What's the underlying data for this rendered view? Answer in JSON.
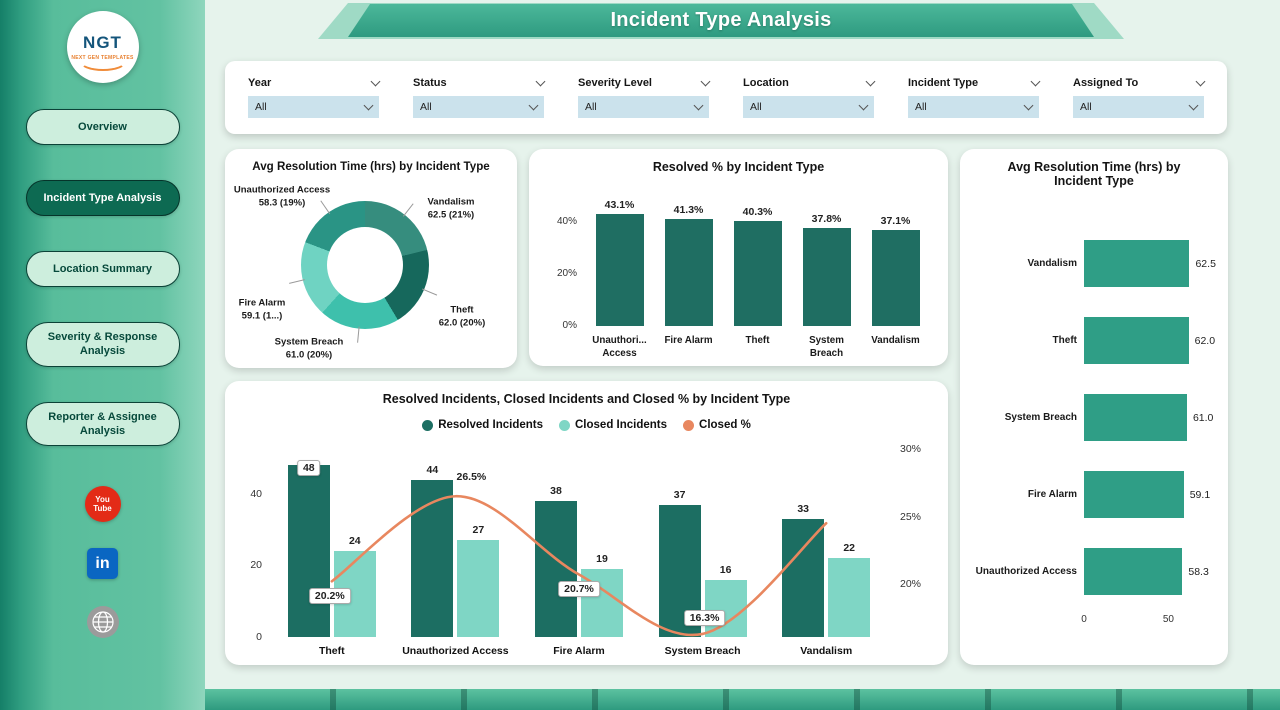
{
  "page_title": "Incident Type Analysis",
  "sidebar": {
    "logo_text": "NGT",
    "logo_subtext": "NEXT GEN TEMPLATES",
    "items": [
      {
        "label": "Overview",
        "active": false
      },
      {
        "label": "Incident Type Analysis",
        "active": true
      },
      {
        "label": "Location Summary",
        "active": false
      },
      {
        "label": "Severity & Response Analysis",
        "active": false
      },
      {
        "label": "Reporter & Assignee Analysis",
        "active": false
      }
    ],
    "social": [
      {
        "name": "youtube",
        "lines": [
          "You",
          "Tube"
        ]
      },
      {
        "name": "linkedin",
        "text": "in"
      },
      {
        "name": "website"
      }
    ]
  },
  "filters": [
    {
      "label": "Year",
      "value": "All"
    },
    {
      "label": "Status",
      "value": "All"
    },
    {
      "label": "Severity Level",
      "value": "All"
    },
    {
      "label": "Location",
      "value": "All"
    },
    {
      "label": "Incident Type",
      "value": "All"
    },
    {
      "label": "Assigned To",
      "value": "All"
    }
  ],
  "chart_data": [
    {
      "id": "avg-resolution-donut",
      "type": "pie",
      "donut": true,
      "title": "Avg Resolution Time (hrs) by Incident Type",
      "slices": [
        {
          "label": "Vandalism",
          "value": 62.5,
          "pct": 21,
          "label_lines": [
            "Vandalism",
            "62.5 (21%)"
          ],
          "color": "#368d7e"
        },
        {
          "label": "Theft",
          "value": 62.0,
          "pct": 20,
          "label_lines": [
            "Theft",
            "62.0 (20%)"
          ],
          "color": "#16685c"
        },
        {
          "label": "System Breach",
          "value": 61.0,
          "pct": 20,
          "label_lines": [
            "System Breach",
            "61.0 (20%)"
          ],
          "color": "#3ec0ac"
        },
        {
          "label": "Fire Alarm",
          "value": 59.1,
          "pct": 19,
          "label_lines": [
            "Fire Alarm",
            "59.1 (1...)"
          ],
          "color": "#6fd3c2"
        },
        {
          "label": "Unauthorized Access",
          "value": 58.3,
          "pct": 19,
          "label_lines": [
            "Unauthorized Access",
            "58.3 (19%)"
          ],
          "color": "#2a9485"
        }
      ]
    },
    {
      "id": "resolved-pct-by-incident-type",
      "type": "bar",
      "title": "Resolved % by Incident Type",
      "categories": [
        [
          "Unauthori...",
          "Access"
        ],
        [
          "Fire Alarm"
        ],
        [
          "Theft"
        ],
        [
          "System",
          "Breach"
        ],
        [
          "Vandalism"
        ]
      ],
      "values": [
        43.1,
        41.3,
        40.3,
        37.8,
        37.1
      ],
      "value_labels": [
        "43.1%",
        "41.3%",
        "40.3%",
        "37.8%",
        "37.1%"
      ],
      "y_ticks": [
        {
          "v": 40,
          "label": "40%"
        },
        {
          "v": 20,
          "label": "20%"
        },
        {
          "v": 0,
          "label": "0%"
        }
      ],
      "ylim": [
        0,
        47
      ],
      "bar_color": "#1f6e62"
    },
    {
      "id": "avg-resolution-hbar",
      "type": "bar",
      "orientation": "horizontal",
      "title": "Avg Resolution Time (hrs) by Incident Type",
      "categories": [
        "Vandalism",
        "Theft",
        "System Breach",
        "Fire Alarm",
        "Unauthorized Access"
      ],
      "values": [
        62.5,
        62.0,
        61.0,
        59.1,
        58.3
      ],
      "value_labels": [
        "62.5",
        "62.0",
        "61.0",
        "59.1",
        "58.3"
      ],
      "x_ticks": [
        {
          "v": 0,
          "label": "0"
        },
        {
          "v": 50,
          "label": "50"
        }
      ],
      "xlim": [
        0,
        64
      ],
      "bar_color": "#2f9e86"
    },
    {
      "id": "resolved-closed-combo",
      "type": "bar",
      "title": "Resolved Incidents, Closed Incidents and Closed % by Incident Type",
      "categories": [
        "Theft",
        "Unauthorized Access",
        "Fire Alarm",
        "System Breach",
        "Vandalism"
      ],
      "series": [
        {
          "name": "Resolved Incidents",
          "kind": "bar",
          "values": [
            48,
            44,
            38,
            37,
            33
          ],
          "value_labels": [
            "48",
            "44",
            "38",
            "37",
            "33"
          ],
          "color": "#1c6e62"
        },
        {
          "name": "Closed Incidents",
          "kind": "bar",
          "values": [
            24,
            27,
            19,
            16,
            22
          ],
          "value_labels": [
            "24",
            "27",
            "19",
            "16",
            "22"
          ],
          "color": "#7fd6c5"
        },
        {
          "name": "Closed %",
          "kind": "line",
          "values": [
            20.2,
            26.5,
            20.7,
            16.3,
            24.5
          ],
          "value_labels": [
            "20.2%",
            "26.5%",
            "20.7%",
            "16.3%",
            ""
          ],
          "color": "#e8875f"
        }
      ],
      "left_axis": {
        "ticks": [
          {
            "v": 40,
            "label": "40"
          },
          {
            "v": 20,
            "label": "20"
          },
          {
            "v": 0,
            "label": "0"
          }
        ],
        "max": 52
      },
      "right_axis": {
        "ticks": [
          {
            "v": 30,
            "label": "30%"
          },
          {
            "v": 25,
            "label": "25%"
          },
          {
            "v": 20,
            "label": "20%"
          }
        ]
      }
    }
  ]
}
